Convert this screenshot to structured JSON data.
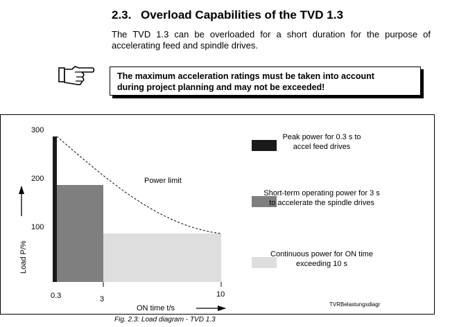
{
  "section": {
    "number": "2.3.",
    "title": "Overload Capabilities of the TVD 1.3",
    "intro": "The TVD 1.3 can be overloaded for a short duration for the purpose of accelerating feed and spindle drives."
  },
  "notice": {
    "icon": "pointing-hand-icon",
    "line1": "The maximum acceleration ratings must be taken into account",
    "line2": "during project planning and may not be exceeded!"
  },
  "chart_data": {
    "type": "area",
    "ylabel": "Load P/%",
    "xlabel": "ON time  t/s",
    "ylim": [
      0,
      300
    ],
    "y_ticks": [
      "100",
      "200",
      "300"
    ],
    "x_ticks": [
      "0.3",
      "3",
      "10"
    ],
    "annotation": "Power limit",
    "series": [
      {
        "name": "Peak power for 0.3 s to accel feed drives",
        "color": "#1a1a1a",
        "x": [
          0,
          0.3
        ],
        "y": 300
      },
      {
        "name": "Short-term operating power for 3 s to accelerate the spindle drives",
        "color": "#7f7f7f",
        "x": [
          0.3,
          3
        ],
        "y": 200
      },
      {
        "name": "Continuous power for ON time exceeding 10 s",
        "color": "#dedede",
        "x": [
          3,
          10
        ],
        "y": 100
      }
    ],
    "legend": [
      {
        "line1": "Peak power for 0.3 s to",
        "line2": "accel feed drives",
        "color": "#1a1a1a"
      },
      {
        "line1": "Short-term operating power for 3 s",
        "line2": "to accelerate the spindle drives",
        "color": "#7f7f7f"
      },
      {
        "line1": "Continuous power for ON time",
        "line2": "exceeding 10 s",
        "color": "#dedede"
      }
    ],
    "file_label": "TVRBelastungsdiagr"
  },
  "caption": "Fig. 2.3:   Load diagram - TVD 1.3"
}
